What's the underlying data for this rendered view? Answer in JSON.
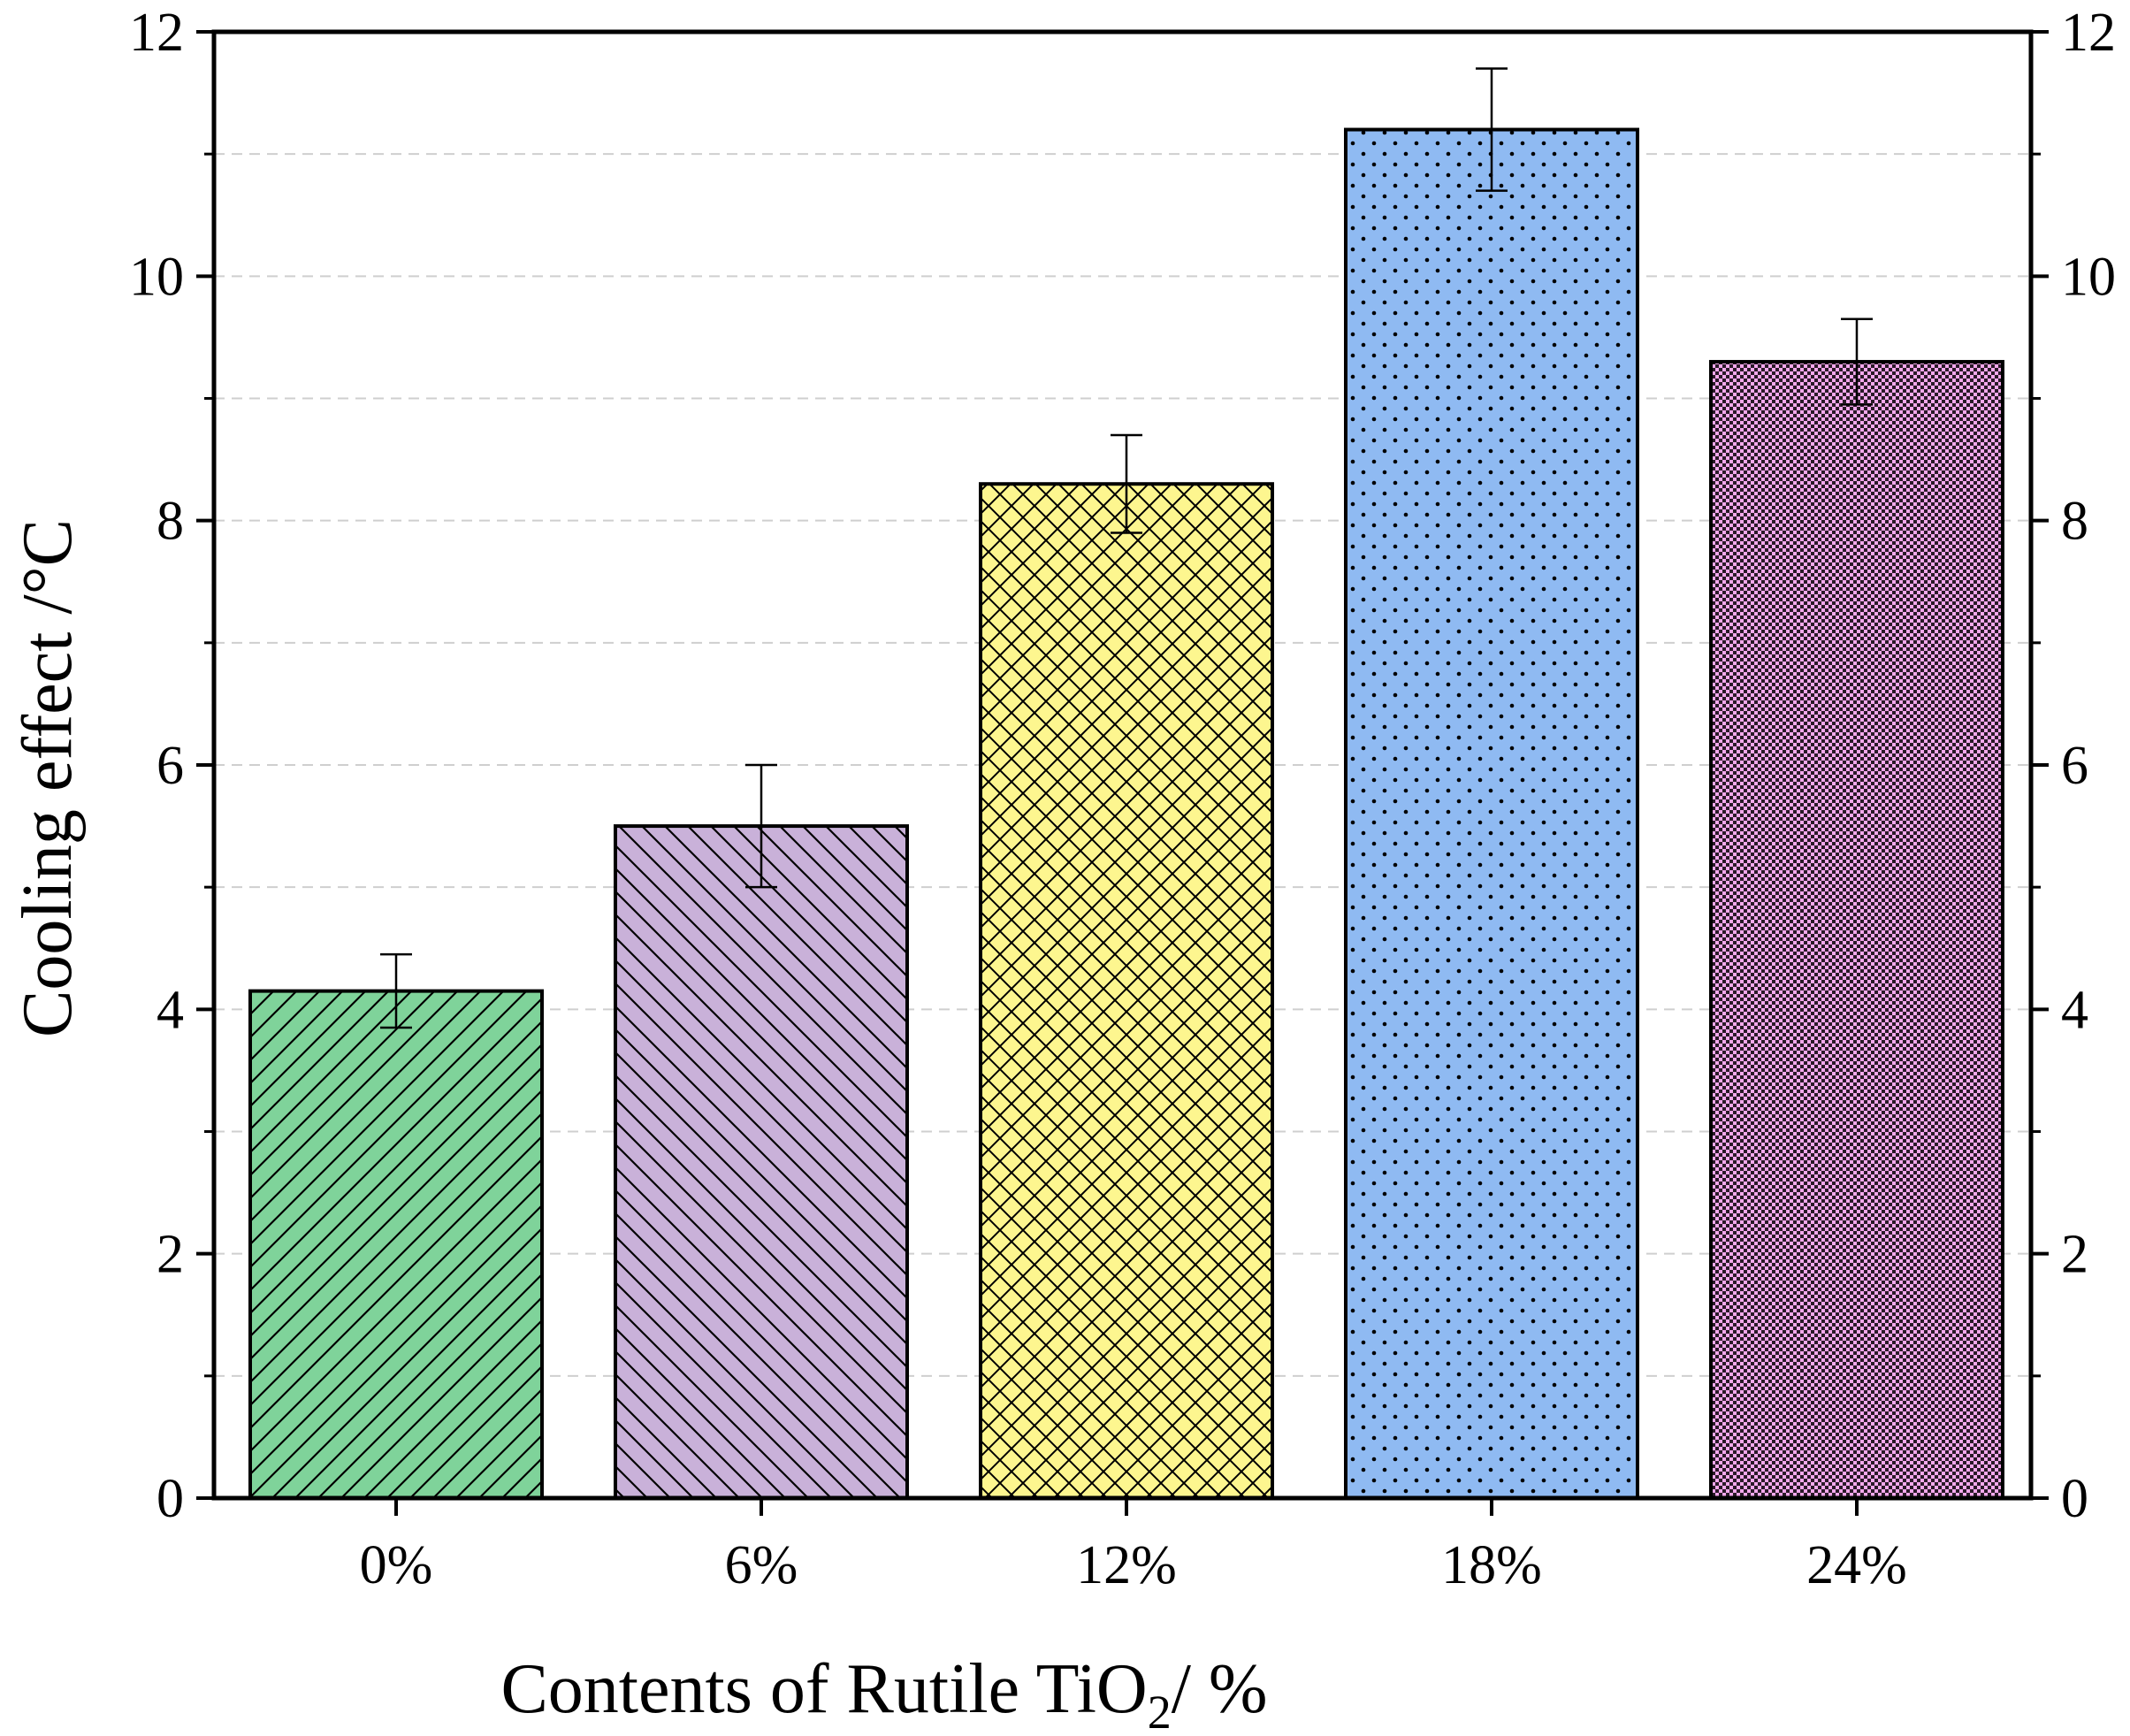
{
  "chart_data": {
    "type": "bar",
    "title": "",
    "xlabel": {
      "main": "Contents of Rutile TiO",
      "subscript": "2",
      "suffix": "/ %"
    },
    "ylabel": "Cooling effect /°C",
    "categories": [
      "0%",
      "6%",
      "12%",
      "18%",
      "24%"
    ],
    "values": [
      4.15,
      5.5,
      8.3,
      11.2,
      9.3
    ],
    "errors": [
      0.3,
      0.5,
      0.4,
      0.5,
      0.35
    ],
    "colors": [
      "#7fd39a",
      "#c9b1d9",
      "#fdf68f",
      "#8fbaf2",
      "#f3a8ec"
    ],
    "patterns": [
      "diag-up",
      "diag-down",
      "crosshatch",
      "dots",
      "checker"
    ],
    "ylim": [
      0,
      12
    ],
    "yticks": [
      "0",
      "2",
      "4",
      "6",
      "8",
      "10",
      "12"
    ],
    "minor_ticks": [
      1,
      3,
      5,
      7,
      9,
      11
    ],
    "grid": true,
    "right_axis_mirrored": true
  }
}
